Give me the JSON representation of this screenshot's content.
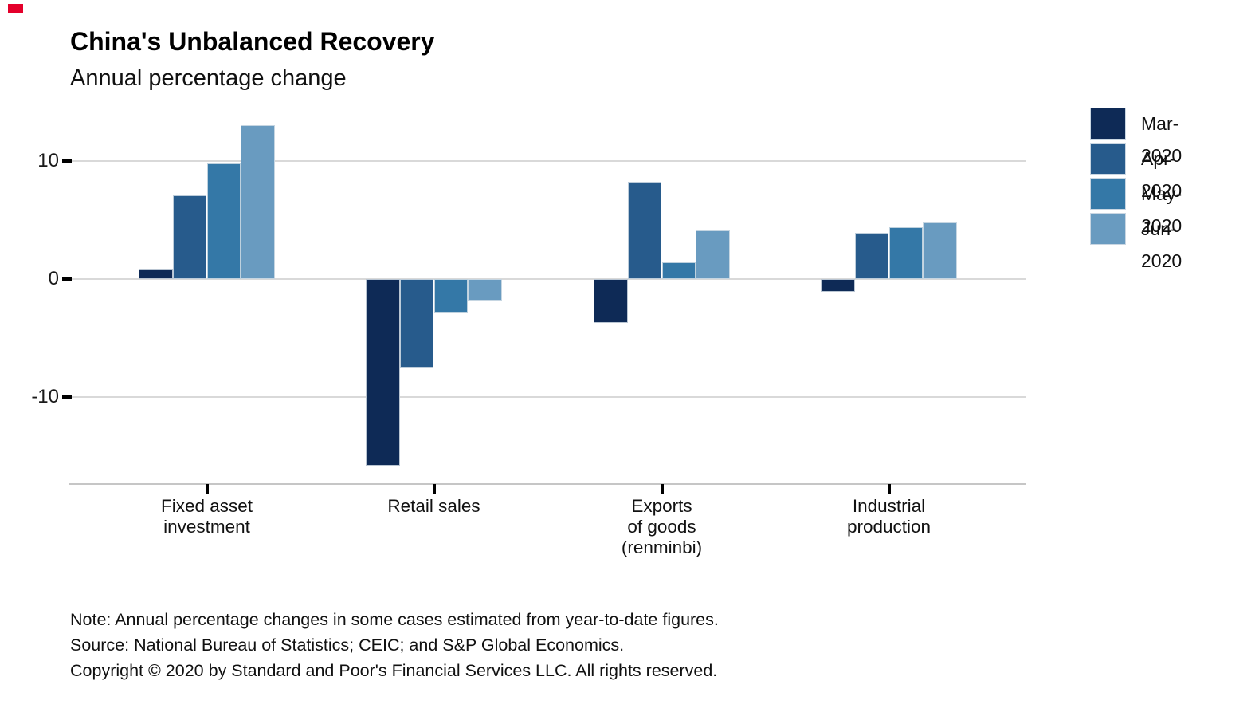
{
  "brand": {
    "mark_color": "#e4002b"
  },
  "chart_data": {
    "type": "bar",
    "title": "China's Unbalanced Recovery",
    "subtitle": "Annual percentage change",
    "categories": [
      "Fixed asset\ninvestment",
      "Retail sales",
      "Exports\nof goods\n(renminbi)",
      "Industrial\nproduction"
    ],
    "series": [
      {
        "name": "Mar-2020",
        "color": "#0e2a56",
        "values": [
          0.8,
          -15.8,
          -3.7,
          -1.1
        ]
      },
      {
        "name": "Apr-2020",
        "color": "#275b8c",
        "values": [
          7.1,
          -7.5,
          8.2,
          3.9
        ]
      },
      {
        "name": "May-2020",
        "color": "#3478a7",
        "values": [
          9.8,
          -2.8,
          1.4,
          4.4
        ]
      },
      {
        "name": "Jun-2020",
        "color": "#699bc0",
        "values": [
          13.0,
          -1.8,
          4.1,
          4.8
        ]
      }
    ],
    "xlabel": "",
    "ylabel": "",
    "y_ticks": [
      10,
      0,
      -10
    ],
    "ylim": [
      -17.25,
      14.15
    ],
    "grid": true,
    "legend_position": "right"
  },
  "footer": {
    "note": "Note: Annual percentage changes in some cases estimated from year-to-date figures.",
    "source": "Source: National Bureau of Statistics; CEIC; and S&P Global Economics.",
    "copyright": "Copyright © 2020 by Standard and Poor's Financial Services LLC. All rights reserved."
  }
}
